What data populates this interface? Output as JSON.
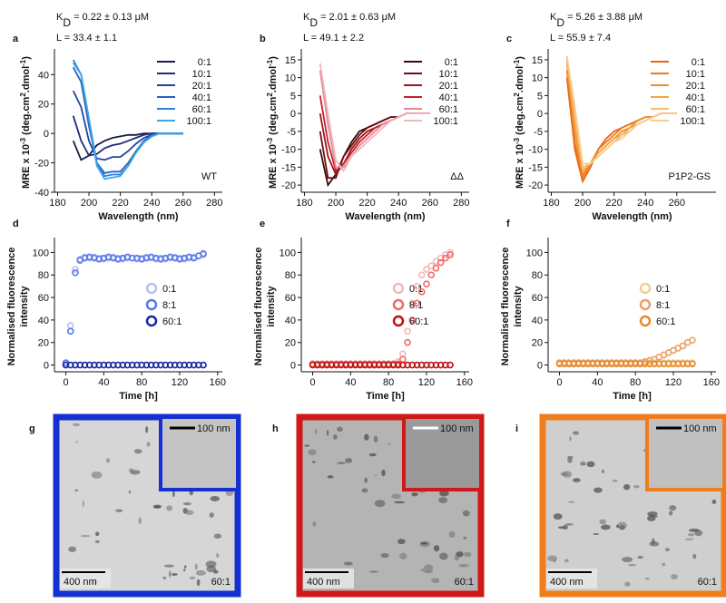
{
  "chart_data": [
    {
      "type": "line",
      "panel": "a",
      "title_parts": [
        "K",
        "D",
        " = 0.22 ± 0.13 μM"
      ],
      "subtitle": "L = 33.4 ± 1.1",
      "title_color": "#2058e0",
      "annotation": "WT",
      "annotation_color": "#36a6ec",
      "xlabel": "Wavelength (nm)",
      "ylabel_parts": [
        "MRE x 10",
        "-3",
        " (deg.cm",
        "2",
        ".dmol",
        "-1",
        ")"
      ],
      "xlim": [
        178,
        285
      ],
      "xticks": [
        180,
        200,
        220,
        240,
        260,
        280
      ],
      "ylim": [
        -40,
        55
      ],
      "yticks": [
        -40,
        -20,
        0,
        20,
        40
      ],
      "x": [
        190,
        195,
        200,
        205,
        210,
        215,
        220,
        225,
        230,
        235,
        240,
        245,
        250,
        255,
        260
      ],
      "series": [
        {
          "name": "0:1",
          "color": "#161c4c",
          "values": [
            -5,
            -18,
            -15,
            -8,
            -5,
            -3,
            -2,
            -1,
            -1,
            0,
            0,
            0,
            0,
            0,
            0
          ]
        },
        {
          "name": "10:1",
          "color": "#1d2c7a",
          "values": [
            12,
            -5,
            -15,
            -14,
            -10,
            -8,
            -7,
            -5,
            -3,
            -1,
            0,
            0,
            0,
            0,
            0
          ]
        },
        {
          "name": "20:1",
          "color": "#2442a0",
          "values": [
            29,
            18,
            -5,
            -17,
            -18,
            -16,
            -16,
            -12,
            -7,
            -3,
            -1,
            0,
            0,
            0,
            0
          ]
        },
        {
          "name": "40:1",
          "color": "#2a5fbf",
          "values": [
            45,
            35,
            5,
            -20,
            -27,
            -26,
            -26,
            -20,
            -12,
            -5,
            -1,
            0,
            0,
            0,
            0
          ]
        },
        {
          "name": "60:1",
          "color": "#2f80d8",
          "values": [
            50,
            40,
            10,
            -20,
            -29,
            -28,
            -28,
            -22,
            -13,
            -6,
            -2,
            0,
            0,
            0,
            0
          ]
        },
        {
          "name": "100:1",
          "color": "#3aa6ea",
          "values": [
            48,
            40,
            10,
            -22,
            -31,
            -30,
            -29,
            -22,
            -13,
            -6,
            -2,
            0,
            0,
            0,
            0
          ]
        }
      ]
    },
    {
      "type": "line",
      "panel": "b",
      "title_parts": [
        "K",
        "D",
        " = 2.01 ± 0.63 μM"
      ],
      "subtitle": "L = 49.1 ± 2.2",
      "title_color": "#d0101a",
      "annotation": "ΔΔ",
      "annotation_color": "#f0808e",
      "xlabel": "Wavelength (nm)",
      "ylabel_parts": [
        "MRE x 10",
        "-3",
        " (deg.cm",
        "2",
        ".dmol",
        "-1",
        ")"
      ],
      "xlim": [
        178,
        285
      ],
      "xticks": [
        180,
        200,
        220,
        240,
        260,
        280
      ],
      "ylim": [
        -22,
        17
      ],
      "yticks": [
        -20,
        -15,
        -10,
        -5,
        0,
        5,
        10,
        15
      ],
      "x": [
        190,
        195,
        200,
        205,
        210,
        215,
        220,
        225,
        230,
        235,
        240,
        245,
        250,
        255,
        260
      ],
      "series": [
        {
          "name": "0:1",
          "color": "#3a0a0a",
          "values": [
            -10,
            -20,
            -17,
            -12,
            -8,
            -5,
            -4,
            -3,
            -2,
            -1,
            -1,
            0,
            0,
            0,
            0
          ]
        },
        {
          "name": "10:1",
          "color": "#6b0f14",
          "values": [
            -5,
            -18,
            -18,
            -12,
            -9,
            -6,
            -4,
            -3,
            -2,
            -1,
            -1,
            0,
            0,
            0,
            0
          ]
        },
        {
          "name": "20:1",
          "color": "#a0141e",
          "values": [
            0,
            -12,
            -17,
            -14,
            -10,
            -7,
            -5,
            -4,
            -3,
            -2,
            -1,
            0,
            0,
            0,
            0
          ]
        },
        {
          "name": "40:1",
          "color": "#c8202b",
          "values": [
            5,
            -8,
            -16,
            -14,
            -11,
            -8,
            -6,
            -4,
            -3,
            -2,
            -1,
            0,
            0,
            0,
            0
          ]
        },
        {
          "name": "60:1",
          "color": "#e58a95",
          "values": [
            12,
            -3,
            -15,
            -15,
            -12,
            -9,
            -7,
            -5,
            -3,
            -2,
            -1,
            0,
            0,
            0,
            0
          ]
        },
        {
          "name": "100:1",
          "color": "#f2b6c0",
          "values": [
            14,
            0,
            -13,
            -16,
            -12,
            -10,
            -8,
            -6,
            -4,
            -2,
            -1,
            0,
            0,
            0,
            0
          ]
        }
      ]
    },
    {
      "type": "line",
      "panel": "c",
      "title_parts": [
        "K",
        "D",
        " = 5.26 ± 3.88 μM"
      ],
      "subtitle": "L = 55.9 ± 7.4",
      "title_color": "#f07d1c",
      "annotation": "P1P2-GS",
      "annotation_color": "#ee7020",
      "xlabel": "Wavelength (nm)",
      "ylabel_parts": [
        "MRE x 10",
        "-3",
        " (deg.cm",
        "2",
        ".dmol",
        "-1",
        ")"
      ],
      "xlim": [
        178,
        285
      ],
      "xticks": [
        180,
        200,
        220,
        240,
        260
      ],
      "ylim": [
        -22,
        17
      ],
      "yticks": [
        -20,
        -15,
        -10,
        -5,
        0,
        5,
        10,
        15
      ],
      "x": [
        190,
        195,
        200,
        205,
        210,
        215,
        220,
        225,
        230,
        235,
        240,
        245,
        250,
        255,
        260
      ],
      "series": [
        {
          "name": "0:1",
          "color": "#e8641a",
          "values": [
            10,
            -10,
            -19,
            -15,
            -10,
            -7,
            -5,
            -4,
            -3,
            -2,
            -1,
            -1,
            0,
            0,
            0
          ]
        },
        {
          "name": "10:1",
          "color": "#ec7a1f",
          "values": [
            12,
            -8,
            -18,
            -14,
            -10,
            -8,
            -6,
            -4,
            -3,
            -2,
            -1,
            -1,
            0,
            0,
            0
          ]
        },
        {
          "name": "20:1",
          "color": "#f08f2a",
          "values": [
            14,
            -5,
            -17,
            -14,
            -11,
            -9,
            -7,
            -5,
            -4,
            -2,
            -1,
            -1,
            0,
            0,
            0
          ]
        },
        {
          "name": "40:1",
          "color": "#f3a446",
          "values": [
            15,
            -3,
            -16,
            -14,
            -11,
            -9,
            -7,
            -6,
            -4,
            -3,
            -2,
            -1,
            0,
            0,
            0
          ]
        },
        {
          "name": "60:1",
          "color": "#f6bd72",
          "values": [
            16,
            0,
            -15,
            -14,
            -12,
            -10,
            -8,
            -6,
            -5,
            -3,
            -2,
            -1,
            0,
            0,
            0
          ]
        },
        {
          "name": "100:1",
          "color": "#f8cc8e",
          "values": [
            16,
            2,
            -14,
            -14,
            -12,
            -10,
            -8,
            -7,
            -5,
            -3,
            -2,
            -1,
            0,
            0,
            0
          ]
        }
      ]
    },
    {
      "type": "scatter",
      "panel": "d",
      "xlabel": "Time [h]",
      "ylabel_lines": [
        "Normalised fluorescence",
        "intensity"
      ],
      "xlim": [
        -12,
        165
      ],
      "xticks": [
        0,
        40,
        80,
        120,
        160
      ],
      "ylim": [
        -6,
        110
      ],
      "yticks": [
        0,
        20,
        40,
        60,
        80,
        100
      ],
      "x": [
        0,
        5,
        10,
        15,
        20,
        25,
        30,
        35,
        40,
        45,
        50,
        55,
        60,
        65,
        70,
        75,
        80,
        85,
        90,
        95,
        100,
        105,
        110,
        115,
        120,
        125,
        130,
        135,
        140,
        145
      ],
      "series": [
        {
          "name": "0:1",
          "color": "#b8c0f0",
          "values": [
            1,
            35,
            85,
            94,
            96,
            95,
            96,
            95,
            94,
            95,
            96,
            95,
            94,
            95,
            95,
            94,
            95,
            96,
            95,
            94,
            95,
            94,
            95,
            96,
            95,
            94,
            95,
            96,
            97,
            98
          ]
        },
        {
          "name": "8:1",
          "color": "#5a78e8",
          "values": [
            2,
            30,
            82,
            93,
            95,
            96,
            95,
            94,
            95,
            96,
            95,
            94,
            95,
            96,
            95,
            95,
            94,
            95,
            96,
            95,
            94,
            95,
            96,
            95,
            94,
            95,
            96,
            95,
            97,
            99
          ]
        },
        {
          "name": "60:1",
          "color": "#1428a0",
          "values": [
            0,
            0,
            0,
            0,
            0,
            0,
            0,
            0,
            0,
            0,
            0,
            0,
            0,
            0,
            0,
            0,
            0,
            0,
            0,
            0,
            0,
            0,
            0,
            0,
            0,
            0,
            0,
            0,
            0,
            0
          ]
        }
      ]
    },
    {
      "type": "scatter",
      "panel": "e",
      "xlabel": "Time [h]",
      "ylabel_lines": [
        "Normalised fluorescence",
        "intensity"
      ],
      "xlim": [
        -12,
        165
      ],
      "xticks": [
        0,
        40,
        80,
        120,
        160
      ],
      "ylim": [
        -6,
        110
      ],
      "yticks": [
        0,
        20,
        40,
        60,
        80,
        100
      ],
      "x": [
        0,
        5,
        10,
        15,
        20,
        25,
        30,
        35,
        40,
        45,
        50,
        55,
        60,
        65,
        70,
        75,
        80,
        85,
        90,
        95,
        100,
        105,
        110,
        115,
        120,
        125,
        130,
        135,
        140,
        145
      ],
      "series": [
        {
          "name": "0:1",
          "color": "#f4b8b8",
          "values": [
            1,
            1,
            1,
            1,
            1,
            1,
            1,
            1,
            1,
            1,
            1,
            1,
            1,
            1,
            1,
            1,
            1,
            1,
            3,
            10,
            30,
            55,
            70,
            80,
            85,
            88,
            92,
            95,
            98,
            100
          ]
        },
        {
          "name": "8:1",
          "color": "#ee6a6a",
          "values": [
            1,
            1,
            1,
            1,
            1,
            1,
            1,
            1,
            1,
            1,
            1,
            1,
            1,
            1,
            1,
            1,
            1,
            1,
            1,
            5,
            20,
            40,
            55,
            65,
            72,
            80,
            86,
            91,
            95,
            98
          ]
        },
        {
          "name": "60:1",
          "color": "#c01010",
          "values": [
            0,
            0,
            0,
            0,
            0,
            0,
            0,
            0,
            0,
            0,
            0,
            0,
            0,
            0,
            0,
            0,
            0,
            0,
            0,
            0,
            0,
            0,
            0,
            0,
            0,
            0,
            0,
            0,
            0,
            0
          ]
        }
      ]
    },
    {
      "type": "scatter",
      "panel": "f",
      "xlabel": "Time [h]",
      "ylabel_lines": [
        "Normalised fluorescence",
        "intensity"
      ],
      "xlim": [
        -12,
        165
      ],
      "xticks": [
        0,
        40,
        80,
        120,
        160
      ],
      "ylim": [
        -6,
        110
      ],
      "yticks": [
        0,
        20,
        40,
        60,
        80,
        100
      ],
      "x": [
        0,
        5,
        10,
        15,
        20,
        25,
        30,
        35,
        40,
        45,
        50,
        55,
        60,
        65,
        70,
        75,
        80,
        85,
        90,
        95,
        100,
        105,
        110,
        115,
        120,
        125,
        130,
        135,
        140
      ],
      "series": [
        {
          "name": "0:1",
          "color": "#f0cf90",
          "values": [
            2,
            2,
            2,
            2,
            2,
            2,
            2,
            2,
            2,
            2,
            2,
            2,
            2,
            2,
            2,
            2,
            2,
            2,
            2,
            2,
            2,
            2,
            2,
            2,
            2,
            2,
            2,
            2,
            2
          ]
        },
        {
          "name": "8:1",
          "color": "#eba060",
          "values": [
            2,
            2,
            2,
            2,
            2,
            2,
            2,
            2,
            2,
            2,
            2,
            2,
            2,
            2,
            2,
            2,
            2,
            2,
            3,
            4,
            5,
            7,
            9,
            11,
            13,
            15,
            17,
            20,
            22
          ]
        },
        {
          "name": "60:1",
          "color": "#e88a30",
          "values": [
            1,
            1,
            1,
            1,
            1,
            1,
            1,
            1,
            1,
            1,
            1,
            1,
            1,
            1,
            1,
            1,
            1,
            1,
            1,
            1,
            1,
            1,
            1,
            1,
            1,
            1,
            1,
            1,
            1
          ]
        }
      ]
    }
  ],
  "micrographs": [
    {
      "panel": "g",
      "color": "#1530d0",
      "label_color": "#1530d0",
      "scale_bar": "400 nm",
      "inset_scale_bar": "100 nm",
      "ratio_label": "60:1"
    },
    {
      "panel": "h",
      "color": "#d01818",
      "label_color": "#f07f8c",
      "scale_bar": "400 nm",
      "inset_scale_bar": "100 nm",
      "ratio_label": "60:1"
    },
    {
      "panel": "i",
      "color": "#f07d1c",
      "label_color": "#b06a2a",
      "scale_bar": "400 nm",
      "inset_scale_bar": "100 nm",
      "ratio_label": "60:1"
    }
  ]
}
